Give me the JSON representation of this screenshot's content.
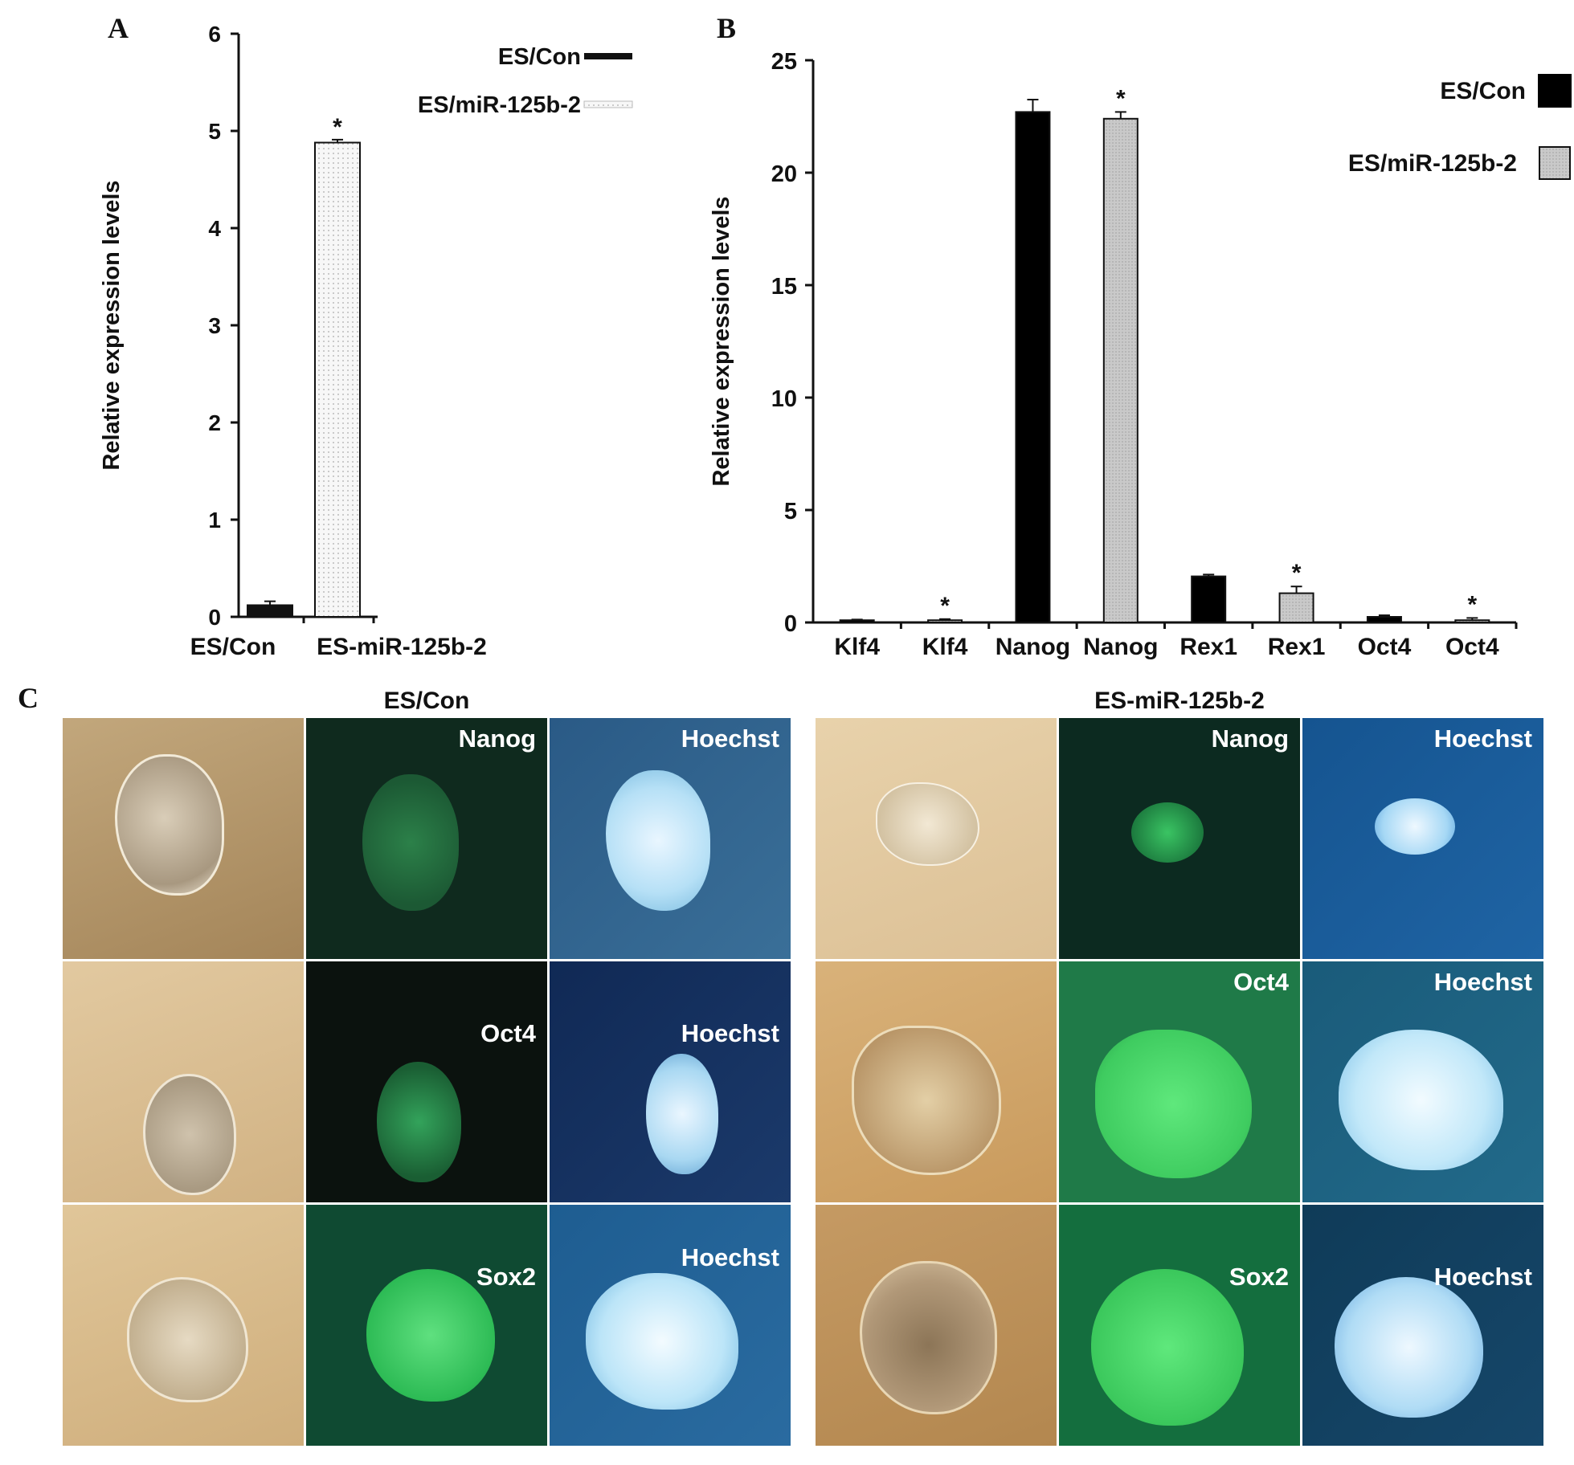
{
  "panel_labels": {
    "a": "A",
    "b": "B",
    "c": "C"
  },
  "chart_data": [
    {
      "type": "bar",
      "panel": "A",
      "categories": [
        "ES/Con",
        "ES-miR-125b-2"
      ],
      "values": [
        0.12,
        4.88
      ],
      "errors": [
        0.04,
        0.03
      ],
      "significance": [
        "",
        "*"
      ],
      "ylabel": "Relative expression levels",
      "ylim": [
        0,
        6
      ],
      "yticks": [
        "0",
        "1",
        "2",
        "3",
        "4",
        "5",
        "6"
      ],
      "legend": [
        "ES/Con",
        "ES/miR-125b-2"
      ],
      "legend_position": "top-right",
      "colors": [
        "#111111",
        "#f2f2f2"
      ]
    },
    {
      "type": "bar",
      "panel": "B",
      "categories": [
        "Klf4",
        "Klf4",
        "Nanog",
        "Nanog",
        "Rex1",
        "Rex1",
        "Oct4",
        "Oct4"
      ],
      "values": [
        0.1,
        0.1,
        22.7,
        22.4,
        2.05,
        1.3,
        0.25,
        0.1
      ],
      "errors": [
        0.03,
        0.05,
        0.55,
        0.3,
        0.08,
        0.3,
        0.07,
        0.1
      ],
      "groups": [
        "ES/Con",
        "ES/miR-125b-2",
        "ES/Con",
        "ES/miR-125b-2",
        "ES/Con",
        "ES/miR-125b-2",
        "ES/Con",
        "ES/miR-125b-2"
      ],
      "significance": [
        "",
        "*",
        "",
        "*",
        "",
        "*",
        "",
        "*"
      ],
      "ylabel": "Relative expression levels",
      "ylim": [
        0,
        25
      ],
      "yticks": [
        "0",
        "5",
        "10",
        "15",
        "20",
        "25"
      ],
      "legend": [
        "ES/Con",
        "ES/miR-125b-2"
      ],
      "legend_position": "top-right",
      "colors": [
        "#000000",
        "#c8c8c8"
      ]
    }
  ],
  "panel_c": {
    "left_title": "ES/Con",
    "right_title": "ES-miR-125b-2",
    "left_labels": [
      [
        "",
        "Nanog",
        "Hoechst"
      ],
      [
        "",
        "Oct4",
        "Hoechst"
      ],
      [
        "",
        "Sox2",
        "Hoechst"
      ]
    ],
    "right_labels": [
      [
        "",
        "Nanog",
        "Hoechst"
      ],
      [
        "",
        "Oct4",
        "Hoechst"
      ],
      [
        "",
        "Sox2",
        "Hoechst"
      ]
    ]
  }
}
